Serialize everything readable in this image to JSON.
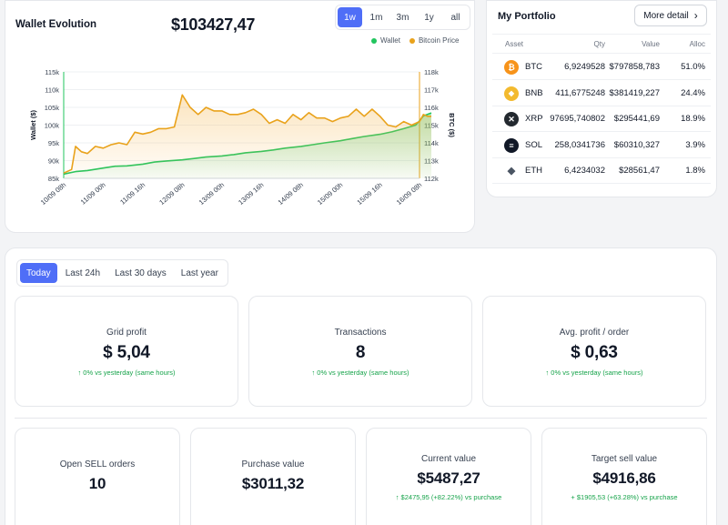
{
  "wallet": {
    "title": "Wallet Evolution",
    "total": "$103427,47",
    "ranges": [
      {
        "label": "1w",
        "active": true
      },
      {
        "label": "1m",
        "active": false
      },
      {
        "label": "3m",
        "active": false
      },
      {
        "label": "1y",
        "active": false
      },
      {
        "label": "all",
        "active": false
      }
    ],
    "legend": [
      {
        "label": "Wallet",
        "color": "#22c55e"
      },
      {
        "label": "Bitcoin Price",
        "color": "#e9a21b"
      }
    ]
  },
  "chart_data": {
    "type": "line",
    "ylabel": "Wallet ($)",
    "y2label": "BTC ($)",
    "ylim": [
      85000,
      115000
    ],
    "y2lim": [
      112000,
      118000
    ],
    "y_ticks": [
      "115k",
      "110k",
      "105k",
      "100k",
      "95k",
      "90k",
      "85k"
    ],
    "y2_ticks": [
      "118k",
      "117k",
      "116k",
      "115k",
      "114k",
      "113k",
      "112k"
    ],
    "x_ticks": [
      "10/09 08h",
      "11/09 00h",
      "11/09 16h",
      "12/09 08h",
      "13/09 00h",
      "13/09 16h",
      "14/09 08h",
      "15/09 00h",
      "15/09 16h",
      "16/09 08h"
    ],
    "series": [
      {
        "name": "Wallet",
        "color": "#22c55e",
        "axis": "left",
        "x": [
          0,
          0.3,
          0.6,
          1,
          1.3,
          1.6,
          2,
          2.3,
          2.6,
          3,
          3.3,
          3.6,
          4,
          4.3,
          4.6,
          5,
          5.3,
          5.6,
          6,
          6.3,
          6.6,
          7,
          7.3,
          7.6,
          8,
          8.3,
          8.6,
          8.9,
          9,
          9.1,
          9.3
        ],
        "values": [
          86200,
          86900,
          87200,
          87900,
          88400,
          88500,
          89000,
          89600,
          89900,
          90200,
          90600,
          91000,
          91300,
          91700,
          92200,
          92600,
          93000,
          93500,
          94000,
          94500,
          95000,
          95600,
          96200,
          96800,
          97400,
          98100,
          99000,
          100000,
          101200,
          102600,
          103427
        ]
      },
      {
        "name": "Bitcoin Price",
        "color": "#e9a21b",
        "axis": "right",
        "x": [
          0,
          0.2,
          0.3,
          0.45,
          0.6,
          0.8,
          1,
          1.2,
          1.4,
          1.6,
          1.8,
          2,
          2.2,
          2.4,
          2.6,
          2.8,
          3,
          3.2,
          3.4,
          3.6,
          3.8,
          4,
          4.2,
          4.4,
          4.6,
          4.8,
          5,
          5.2,
          5.4,
          5.6,
          5.8,
          6,
          6.2,
          6.4,
          6.6,
          6.8,
          7,
          7.2,
          7.4,
          7.6,
          7.8,
          8,
          8.2,
          8.4,
          8.6,
          8.8,
          9,
          9.1,
          9.2,
          9.3
        ],
        "values": [
          112300,
          112500,
          113800,
          113500,
          113400,
          113800,
          113700,
          113900,
          114000,
          113900,
          114600,
          114500,
          114600,
          114800,
          114800,
          114900,
          116700,
          116000,
          115600,
          116000,
          115800,
          115800,
          115600,
          115600,
          115700,
          115900,
          115600,
          115100,
          115300,
          115100,
          115600,
          115300,
          115700,
          115400,
          115400,
          115200,
          115400,
          115500,
          115900,
          115500,
          115900,
          115500,
          115000,
          114900,
          115200,
          115000,
          115200,
          115600,
          115500,
          115500
        ]
      }
    ]
  },
  "portfolio": {
    "title": "My Portfolio",
    "more_label": "More detail",
    "columns": {
      "asset": "Asset",
      "qty": "Qty",
      "value": "Value",
      "alloc": "Alloc"
    },
    "rows": [
      {
        "symbol": "BTC",
        "qty": "6,9249528",
        "value": "$797858,783",
        "alloc": "51.0%",
        "icon": "bitcoin-icon",
        "color": "#f7931a",
        "glyph": "₿"
      },
      {
        "symbol": "BNB",
        "qty": "411,6775248",
        "value": "$381419,227",
        "alloc": "24.4%",
        "icon": "bnb-icon",
        "color": "#f3ba2f",
        "glyph": "◆"
      },
      {
        "symbol": "XRP",
        "qty": "97695,740802",
        "value": "$295441,69",
        "alloc": "18.9%",
        "icon": "xrp-icon",
        "color": "#23292f",
        "glyph": "✕"
      },
      {
        "symbol": "SOL",
        "qty": "258,0341736",
        "value": "$60310,327",
        "alloc": "3.9%",
        "icon": "solana-icon",
        "color": "#111827",
        "glyph": "≡"
      },
      {
        "symbol": "ETH",
        "qty": "6,4234032",
        "value": "$28561,47",
        "alloc": "1.8%",
        "icon": "ethereum-icon",
        "color": "#ffffff",
        "glyph": "◆"
      }
    ]
  },
  "periods": [
    {
      "label": "Today",
      "active": true
    },
    {
      "label": "Last 24h",
      "active": false
    },
    {
      "label": "Last 30 days",
      "active": false
    },
    {
      "label": "Last year",
      "active": false
    }
  ],
  "stats_top": [
    {
      "label": "Grid profit",
      "value": "$  5,04",
      "sub": "↑ 0% vs yesterday (same hours)"
    },
    {
      "label": "Transactions",
      "value": "8",
      "sub": "↑ 0% vs yesterday (same hours)"
    },
    {
      "label": "Avg. profit / order",
      "value": "$  0,63",
      "sub": "↑ 0% vs yesterday (same hours)"
    }
  ],
  "stats_bottom": [
    {
      "label": "Open SELL orders",
      "value": "10",
      "sub": ""
    },
    {
      "label": "Purchase value",
      "value": "$3011,32",
      "sub": ""
    },
    {
      "label": "Current value",
      "value": "$5487,27",
      "sub": "↑ $2475,95 (+82.22%) vs purchase"
    },
    {
      "label": "Target sell value",
      "value": "$4916,86",
      "sub": "+ $1905,53 (+63.28%) vs purchase"
    }
  ]
}
